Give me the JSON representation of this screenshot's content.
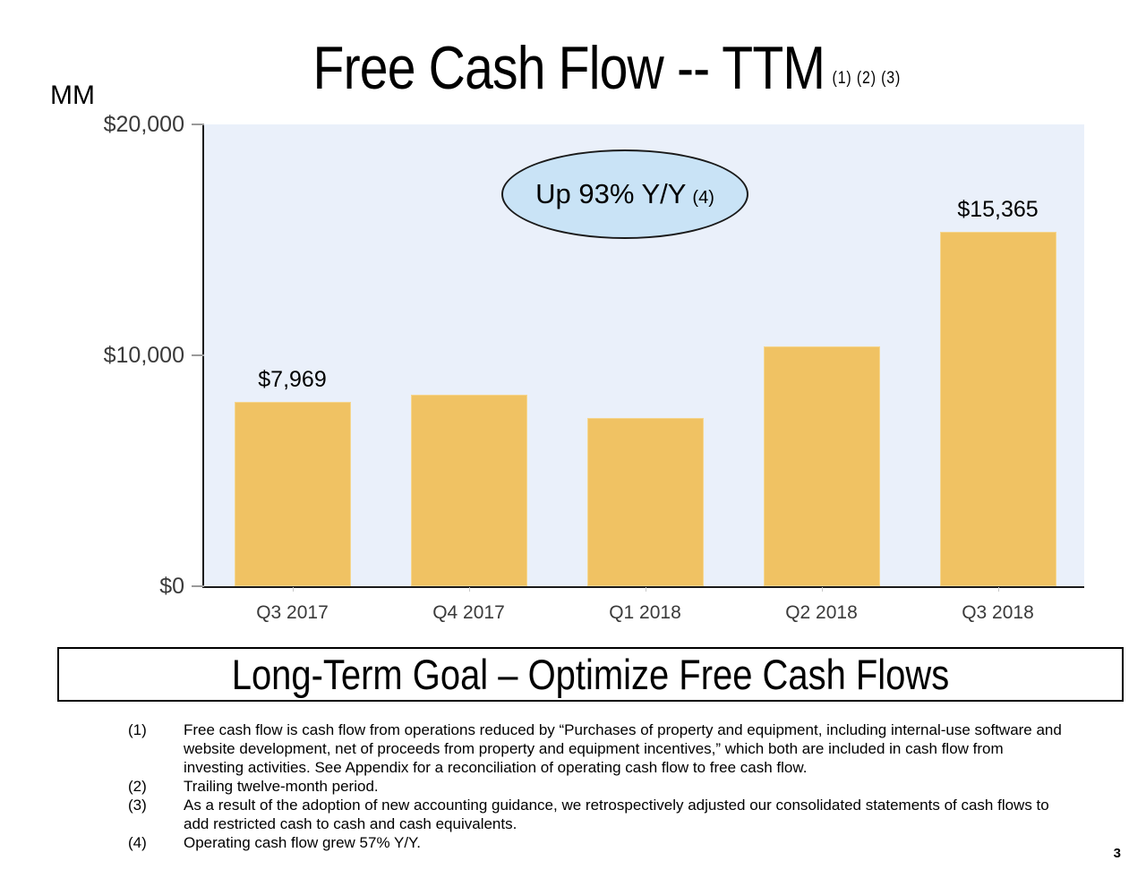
{
  "slide": {
    "title": "Free Cash Flow -- TTM",
    "title_footnote_refs": "(1) (2) (3)",
    "units_label": "MM",
    "callout_text": "Up 93% Y/Y",
    "callout_footnote_ref": "(4)",
    "goal_banner": "Long-Term Goal – Optimize Free Cash Flows",
    "page_number": "3",
    "footnotes": [
      {
        "num": "(1)",
        "text": "Free cash flow is cash flow from operations reduced by “Purchases of property and equipment, including internal-use software and website development, net of proceeds from property and equipment incentives,” which both are included in cash flow from investing activities. See Appendix for a reconciliation of operating cash flow to free cash flow."
      },
      {
        "num": "(2)",
        "text": "Trailing twelve-month period."
      },
      {
        "num": "(3)",
        "text": "As a result of the adoption of new accounting guidance, we retrospectively adjusted our consolidated statements of cash flows to add restricted cash to cash and cash equivalents."
      },
      {
        "num": "(4)",
        "text": "Operating cash flow grew 57% Y/Y."
      }
    ]
  },
  "chart_data": {
    "type": "bar",
    "title": "Free Cash Flow -- TTM",
    "ylabel": "MM",
    "categories": [
      "Q3 2017",
      "Q4 2017",
      "Q1 2018",
      "Q2 2018",
      "Q3 2018"
    ],
    "values": [
      7969,
      8300,
      7300,
      10400,
      15365
    ],
    "data_labels": [
      "$7,969",
      "",
      "",
      "",
      "$15,365"
    ],
    "annotation": "Up 93% Y/Y (4)",
    "ylim": [
      0,
      20000
    ],
    "yticks": [
      {
        "value": 20000,
        "label": "$20,000"
      },
      {
        "value": 10000,
        "label": "$10,000"
      },
      {
        "value": 0,
        "label": "$0"
      }
    ],
    "grid": false,
    "legend": "none",
    "bar_color": "#F0C263",
    "plot_background": "#EAF0FA",
    "callout_fill": "#C9E3F6"
  }
}
